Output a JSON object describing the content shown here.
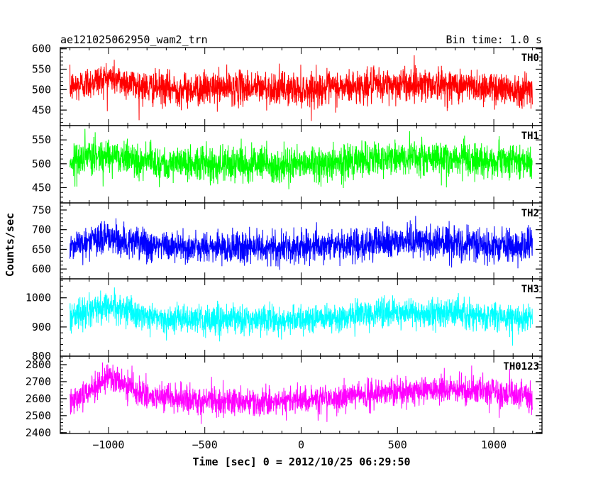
{
  "header": {
    "title": "ae121025062950_wam2_trn",
    "bin_time": "Bin time: 1.0 s"
  },
  "axes": {
    "ylabel": "Counts/sec",
    "xlabel": "Time [sec] 0 = 2012/10/25 06:29:50"
  },
  "chart_data": {
    "type": "line",
    "title": "ae121025062950_wam2_trn",
    "xlabel": "Time [sec] 0 = 2012/10/25 06:29:50",
    "ylabel": "Counts/sec",
    "xlim": [
      -1250,
      1250
    ],
    "data_x_range": [
      -1200,
      1200
    ],
    "bin_time_s": 1.0,
    "x_ticks": [
      -1000,
      -500,
      0,
      500,
      1000
    ],
    "x_tick_labels": [
      "−1000",
      "−500",
      "0",
      "500",
      "1000"
    ],
    "grid": false,
    "panels": [
      {
        "name": "TH0",
        "color": "#ff0000",
        "ylim": [
          412,
          603
        ],
        "yticks": [
          450,
          500,
          550,
          600
        ],
        "ytick_labels": [
          "450",
          "500",
          "550",
          "600"
        ],
        "approx_mean": 510,
        "approx_spread": 45,
        "x_segments": [
          -1200,
          -1000,
          -800,
          -600,
          -400,
          -200,
          0,
          200,
          400,
          600,
          800,
          1000,
          1200
        ],
        "mean_segments": [
          505,
          530,
          505,
          500,
          505,
          505,
          500,
          505,
          510,
          515,
          510,
          505,
          500
        ]
      },
      {
        "name": "TH1",
        "color": "#00ff00",
        "ylim": [
          418,
          580
        ],
        "yticks": [
          450,
          500,
          550
        ],
        "ytick_labels": [
          "450",
          "500",
          "550"
        ],
        "approx_mean": 505,
        "approx_spread": 40,
        "x_segments": [
          -1200,
          -1000,
          -800,
          -600,
          -400,
          -200,
          0,
          200,
          400,
          600,
          800,
          1000,
          1200
        ],
        "mean_segments": [
          505,
          520,
          505,
          500,
          500,
          500,
          500,
          505,
          510,
          515,
          510,
          505,
          505
        ]
      },
      {
        "name": "TH2",
        "color": "#0000ff",
        "ylim": [
          575,
          768
        ],
        "yticks": [
          600,
          650,
          700,
          750
        ],
        "ytick_labels": [
          "600",
          "650",
          "700",
          "750"
        ],
        "approx_mean": 660,
        "approx_spread": 45,
        "x_segments": [
          -1200,
          -1000,
          -800,
          -600,
          -400,
          -200,
          0,
          200,
          400,
          600,
          800,
          1000,
          1200
        ],
        "mean_segments": [
          660,
          680,
          660,
          655,
          655,
          655,
          655,
          660,
          665,
          670,
          665,
          660,
          660
        ]
      },
      {
        "name": "TH3",
        "color": "#00ffff",
        "ylim": [
          800,
          1065
        ],
        "yticks": [
          800,
          900,
          1000
        ],
        "ytick_labels": [
          "800",
          "900",
          "1000"
        ],
        "approx_mean": 935,
        "approx_spread": 55,
        "x_segments": [
          -1200,
          -1000,
          -800,
          -600,
          -400,
          -200,
          0,
          200,
          400,
          600,
          800,
          1000,
          1200
        ],
        "mean_segments": [
          935,
          975,
          935,
          925,
          925,
          925,
          925,
          935,
          945,
          950,
          945,
          935,
          930
        ]
      },
      {
        "name": "TH0123",
        "color": "#ff00ff",
        "ylim": [
          2395,
          2850
        ],
        "yticks": [
          2400,
          2500,
          2600,
          2700,
          2800
        ],
        "ytick_labels": [
          "2400",
          "2500",
          "2600",
          "2700",
          "2800"
        ],
        "approx_mean": 2600,
        "approx_spread": 90,
        "x_segments": [
          -1200,
          -1100,
          -1000,
          -900,
          -800,
          -600,
          -400,
          -200,
          0,
          200,
          400,
          600,
          800,
          1000,
          1200
        ],
        "mean_segments": [
          2590,
          2650,
          2720,
          2680,
          2610,
          2590,
          2585,
          2580,
          2590,
          2610,
          2630,
          2650,
          2660,
          2640,
          2610
        ]
      }
    ]
  }
}
